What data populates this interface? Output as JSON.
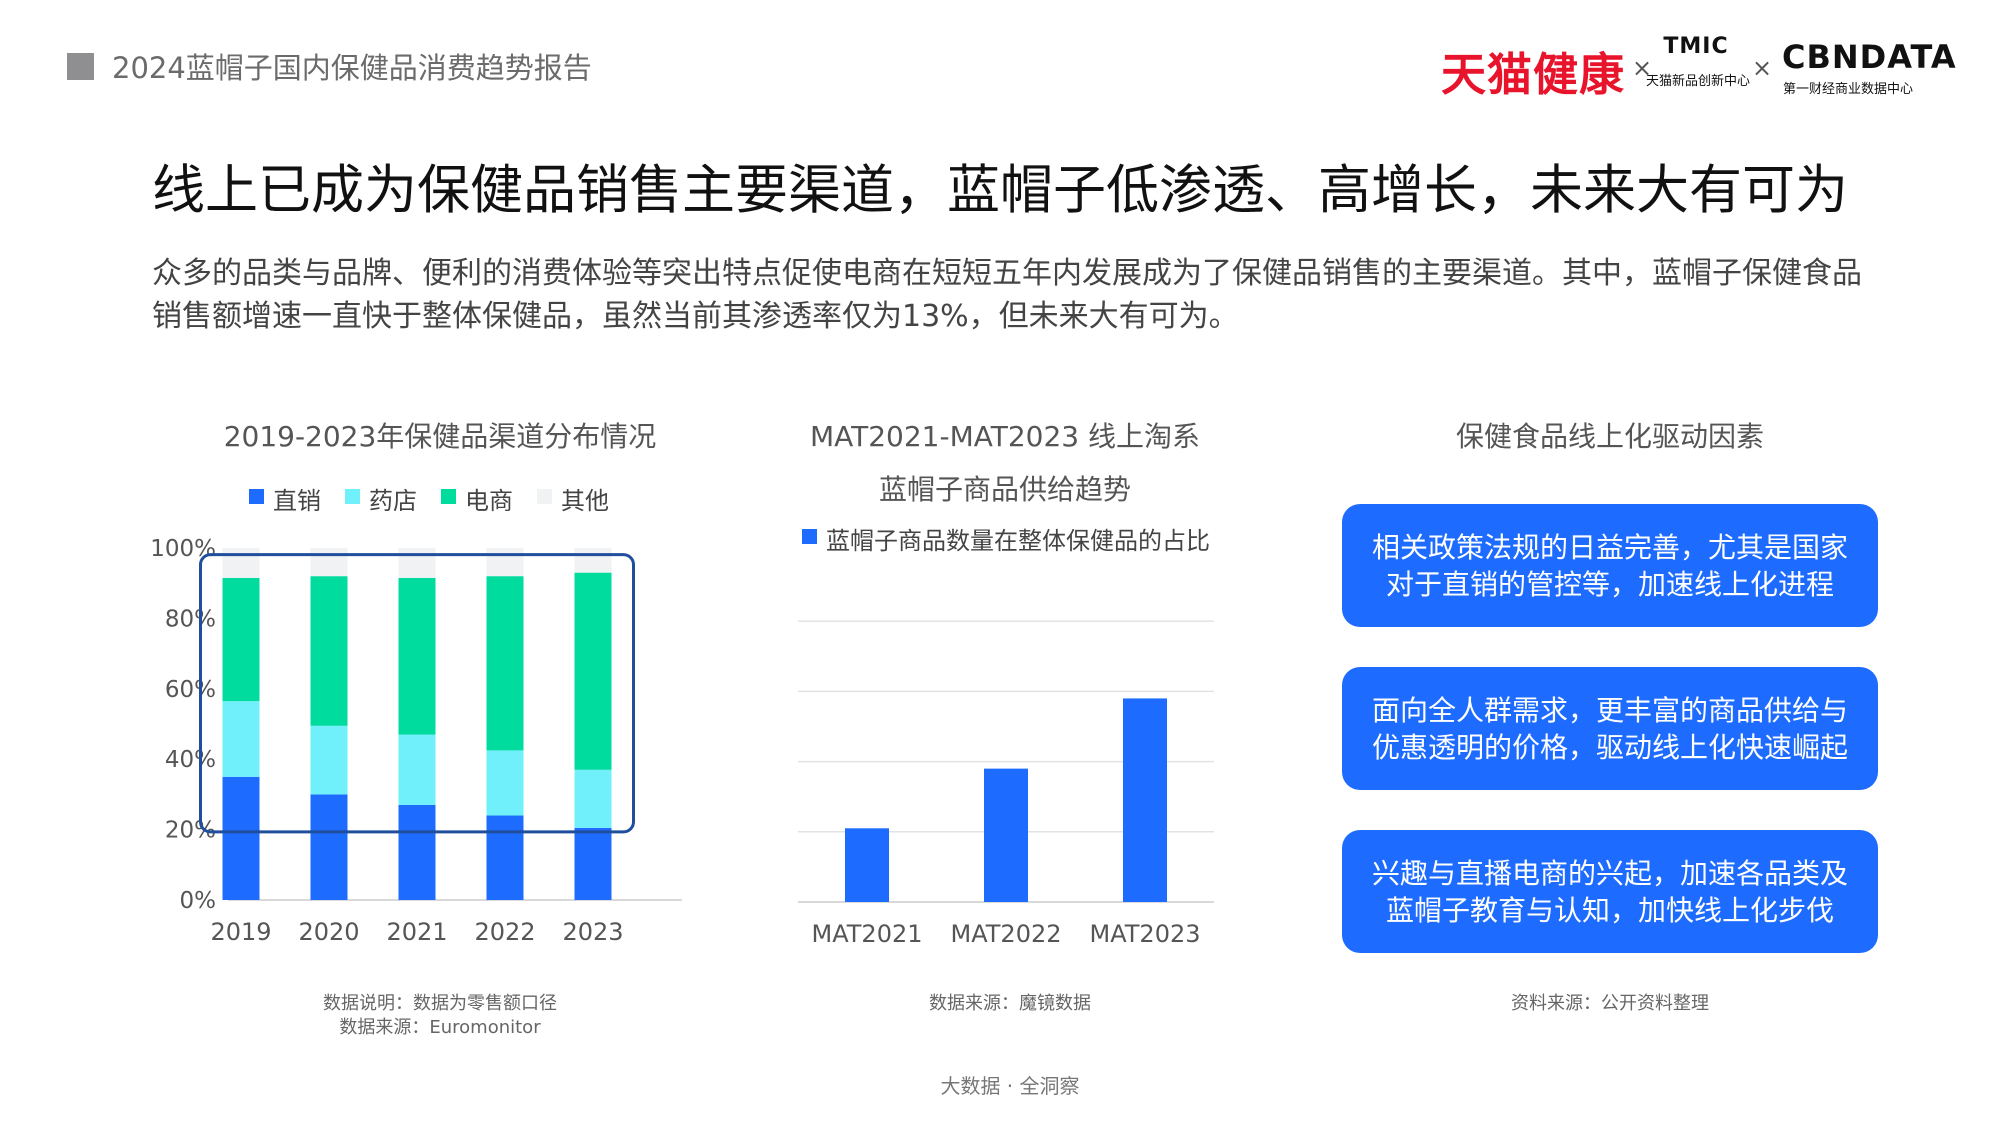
{
  "header": {
    "report_title": "2024蓝帽子国内保健品消费趋势报告",
    "brand_tmall": "天猫健康",
    "separator": "×",
    "tmic_logo": "TMIC",
    "tmic_sub": "天猫新品创新中心",
    "cbn_logo": "CBNDATA",
    "cbn_sub": "第一财经商业数据中心"
  },
  "headline": "线上已成为保健品销售主要渠道，蓝帽子低渗透、高增长，未来大有可为",
  "intro": "众多的品类与品牌、便利的消费体验等突出特点促使电商在短短五年内发展成为了保健品销售的主要渠道。其中，蓝帽子保健食品销售额增速一直快于整体保健品，虽然当前其渗透率仅为13%，但未来大有可为。",
  "chart_data": [
    {
      "type": "bar",
      "stacked": true,
      "title": "2019-2023年保健品渠道分布情况",
      "categories": [
        "2019",
        "2020",
        "2021",
        "2022",
        "2023"
      ],
      "series": [
        {
          "name": "直销",
          "color": "#1e6cff",
          "values": [
            35,
            30,
            27,
            24,
            20.5
          ]
        },
        {
          "name": "药店",
          "color": "#6ff0fb",
          "values": [
            21.5,
            19.5,
            20,
            18.5,
            16.5
          ]
        },
        {
          "name": "电商",
          "color": "#00db9e",
          "values": [
            35,
            42.5,
            44.5,
            49.5,
            56
          ]
        },
        {
          "name": "其他",
          "color": "#f1f2f4",
          "values": [
            8.5,
            8,
            8.5,
            8,
            7
          ]
        }
      ],
      "ylim": [
        0,
        100
      ],
      "yticks": [
        "0%",
        "20%",
        "40%",
        "60%",
        "80%",
        "100%"
      ],
      "grid": false,
      "legend_position": "top",
      "highlight": "2019-2023年 药店+电商 区域框选"
    },
    {
      "type": "bar",
      "title": "MAT2021-MAT2023 线上淘系",
      "subtitle": "蓝帽子商品供给趋势",
      "categories": [
        "MAT2021",
        "MAT2022",
        "MAT2023"
      ],
      "series": [
        {
          "name": "蓝帽子商品数量在整体保健品的占比",
          "color": "#1e6cff",
          "values": [
            21,
            38,
            58
          ]
        }
      ],
      "ylim": [
        0,
        100
      ],
      "grid": true,
      "legend_position": "top-left"
    }
  ],
  "drivers": {
    "title": "保健食品线上化驱动因素",
    "items": [
      "相关政策法规的日益完善，尤其是国家对于直销的管控等，加速线上化进程",
      "面向全人群需求，更丰富的商品供给与优惠透明的价格，驱动线上化快速崛起",
      "兴趣与直播电商的兴起，加速各品类及蓝帽子教育与认知，加快线上化步伐"
    ]
  },
  "notes": {
    "chart1_line1": "数据说明：数据为零售额口径",
    "chart1_line2": "数据来源：Euromonitor",
    "chart2": "数据来源：魔镜数据",
    "drivers": "资料来源：公开资料整理"
  },
  "footer": "大数据 · 全洞察",
  "colors": {
    "accent_blue": "#1e6cff",
    "cyan": "#6ff0fb",
    "green": "#00db9e",
    "other_gray": "#f1f2f4",
    "brand_red": "#e8142c",
    "highlight_border": "#1f4e9d"
  }
}
